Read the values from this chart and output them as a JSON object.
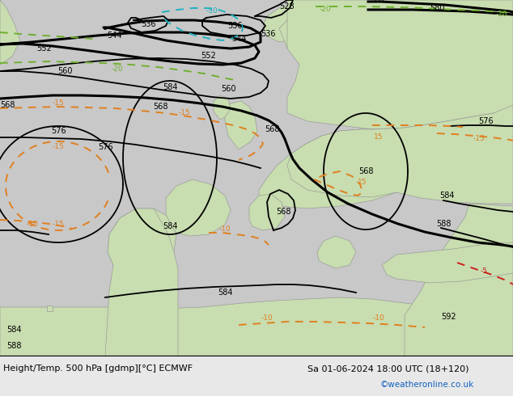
{
  "title_left": "Height/Temp. 500 hPa [gdmp][°C] ECMWF",
  "title_right": "Sa 01-06-2024 18:00 UTC (18+120)",
  "credit": "©weatheronline.co.uk",
  "bg_gray": "#c8c8c8",
  "bg_green_light": "#c8ddb0",
  "bg_green_dark": "#b0c890",
  "land_gray": "#a8a8a8",
  "height_color": "#000000",
  "temp_orange": "#e08020",
  "temp_green": "#70b030",
  "temp_cyan": "#20b0c0",
  "temp_red": "#cc2020",
  "credit_color": "#1060c0",
  "bottom_bar_color": "#e8e8e8"
}
